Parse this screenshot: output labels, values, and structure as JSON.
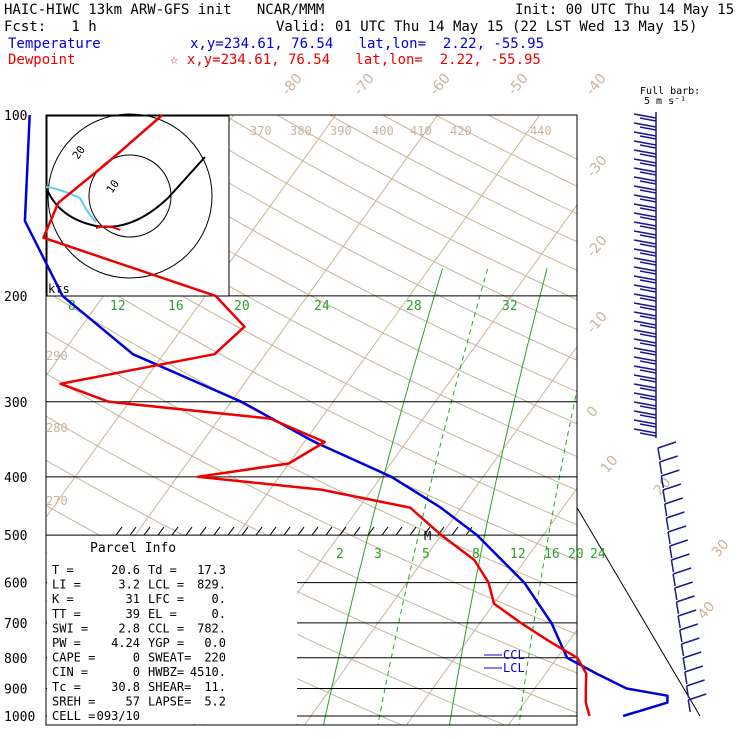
{
  "header": {
    "title": "HAIC-HIWC 13km ARW-GFS init   NCAR/MMM",
    "init": "Init: 00 UTC Thu 14 May 15",
    "fcst": "Fcst:   1 h",
    "valid": "Valid: 01 UTC Thu 14 May 15 (22 LST Wed 13 May 15)",
    "temp_label": "Temperature",
    "temp_loc": "x,y=234.61, 76.54   lat,lon=  2.22, -55.95",
    "dew_label": "Dewpoint",
    "dew_loc": "x,y=234.61, 76.54   lat,lon=  2.22, -55.95",
    "barb_legend_1": "Full barb:",
    "barb_legend_2": "5 m s⁻¹",
    "hodo_units": "kts"
  },
  "colors": {
    "temperature": "#0000dd",
    "dewpoint": "#ee0000",
    "isotherm": "#c8b49a",
    "mixing_ratio": "#2ca02c",
    "wind": "#1a1a8c"
  },
  "chart_data": {
    "type": "line",
    "title": "HAIC-HIWC 13km ARW-GFS init",
    "y_axis": "pressure (hPa, log scale, inverted)",
    "pressure_ticks": [
      "100",
      "200",
      "300",
      "400",
      "500",
      "600",
      "700",
      "800",
      "900",
      "1000"
    ],
    "isotherm_labels": [
      "-80",
      "-70",
      "-60",
      "-50",
      "-40",
      "-30",
      "-20",
      "-10",
      "0",
      "10",
      "20",
      "30",
      "40"
    ],
    "theta_labels": [
      "370",
      "380",
      "390",
      "400",
      "410",
      "420",
      "440",
      "290",
      "280",
      "270"
    ],
    "mixing_ratio_labels_upper": [
      "8",
      "12",
      "16",
      "20",
      "24",
      "28",
      "32"
    ],
    "mixing_ratio_labels_lower": [
      "2",
      "3",
      "5",
      "8",
      "12",
      "16",
      "20",
      "24"
    ],
    "series": [
      {
        "name": "Temperature",
        "pressure": [
          1000,
          950,
          925,
          900,
          850,
          800,
          700,
          600,
          500,
          450,
          400,
          350,
          300,
          250,
          200,
          150,
          100
        ],
        "values": [
          20.6,
          24,
          23.5,
          19,
          15,
          11,
          7,
          1.5,
          -6.5,
          -12,
          -19,
          -29,
          -39,
          -53,
          -64,
          -73,
          -80
        ]
      },
      {
        "name": "Dewpoint",
        "pressure": [
          1000,
          950,
          900,
          850,
          800,
          750,
          700,
          650,
          600,
          550,
          500,
          450,
          420,
          400,
          380,
          350,
          320,
          300,
          280,
          250,
          225,
          200,
          160,
          140,
          120,
          100
        ],
        "values": [
          17.3,
          16,
          15,
          14,
          12,
          8,
          4,
          0,
          -2,
          -5,
          -10,
          -15,
          -25,
          -38,
          -30,
          -28,
          -35,
          -52,
          -58,
          -45,
          -44,
          -49,
          -70,
          -71,
          -69,
          -67
        ]
      }
    ],
    "levels_marked": [
      "CCL",
      "LCL",
      "M"
    ]
  },
  "parcel": {
    "title": "Parcel Info",
    "rows": [
      [
        "T  =",
        "20.6",
        "Td =",
        "17.3"
      ],
      [
        "LI =",
        "3.2",
        "LCL =",
        "829."
      ],
      [
        "K  =",
        "31",
        "LFC =",
        "0."
      ],
      [
        "TT =",
        "39",
        "EL  =",
        "0."
      ],
      [
        "SWI =",
        "2.8",
        "CCL =",
        "782."
      ],
      [
        "PW =",
        "4.24",
        "YGP =",
        "0.0"
      ],
      [
        "CAPE =",
        "0",
        "SWEAT=",
        "220"
      ],
      [
        "CIN  =",
        "0",
        "HWBZ=",
        "4510."
      ],
      [
        "Tc =",
        "30.8",
        "SHEAR=",
        "11."
      ],
      [
        "SREH =",
        "57",
        "LAPSE=",
        "5.2"
      ],
      [
        "CELL =",
        "093/10",
        "",
        ""
      ]
    ]
  }
}
